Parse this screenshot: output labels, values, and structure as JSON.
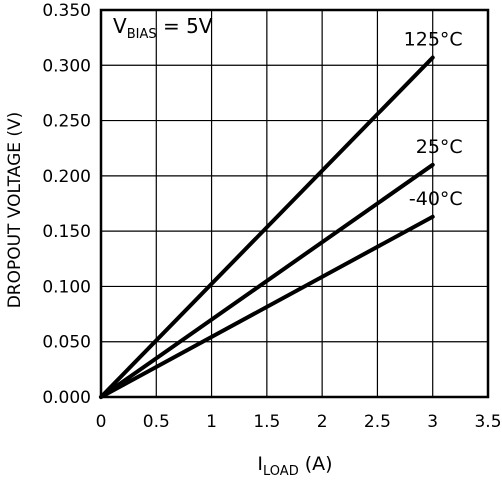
{
  "chart_data": {
    "type": "line",
    "xlabel_main": "I",
    "xlabel_sub": "LOAD",
    "xlabel_unit": " (A)",
    "ylabel": "DROPOUT VOLTAGE (V)",
    "annotation_main": "V",
    "annotation_sub": "BIAS",
    "annotation_rest": " = 5V",
    "xlim": [
      0,
      3.5
    ],
    "ylim": [
      0,
      0.35
    ],
    "x_ticks": [
      "0",
      "0.5",
      "1",
      "1.5",
      "2",
      "2.5",
      "3",
      "3.5"
    ],
    "y_ticks": [
      "0.000",
      "0.050",
      "0.100",
      "0.150",
      "0.200",
      "0.250",
      "0.300",
      "0.350"
    ],
    "grid": true,
    "series": [
      {
        "name": "125°C",
        "x": [
          0,
          3
        ],
        "y": [
          0,
          0.307
        ]
      },
      {
        "name": "25°C",
        "x": [
          0,
          3
        ],
        "y": [
          0,
          0.21
        ]
      },
      {
        "name": "-40°C",
        "x": [
          0,
          3
        ],
        "y": [
          0,
          0.163
        ]
      }
    ]
  }
}
